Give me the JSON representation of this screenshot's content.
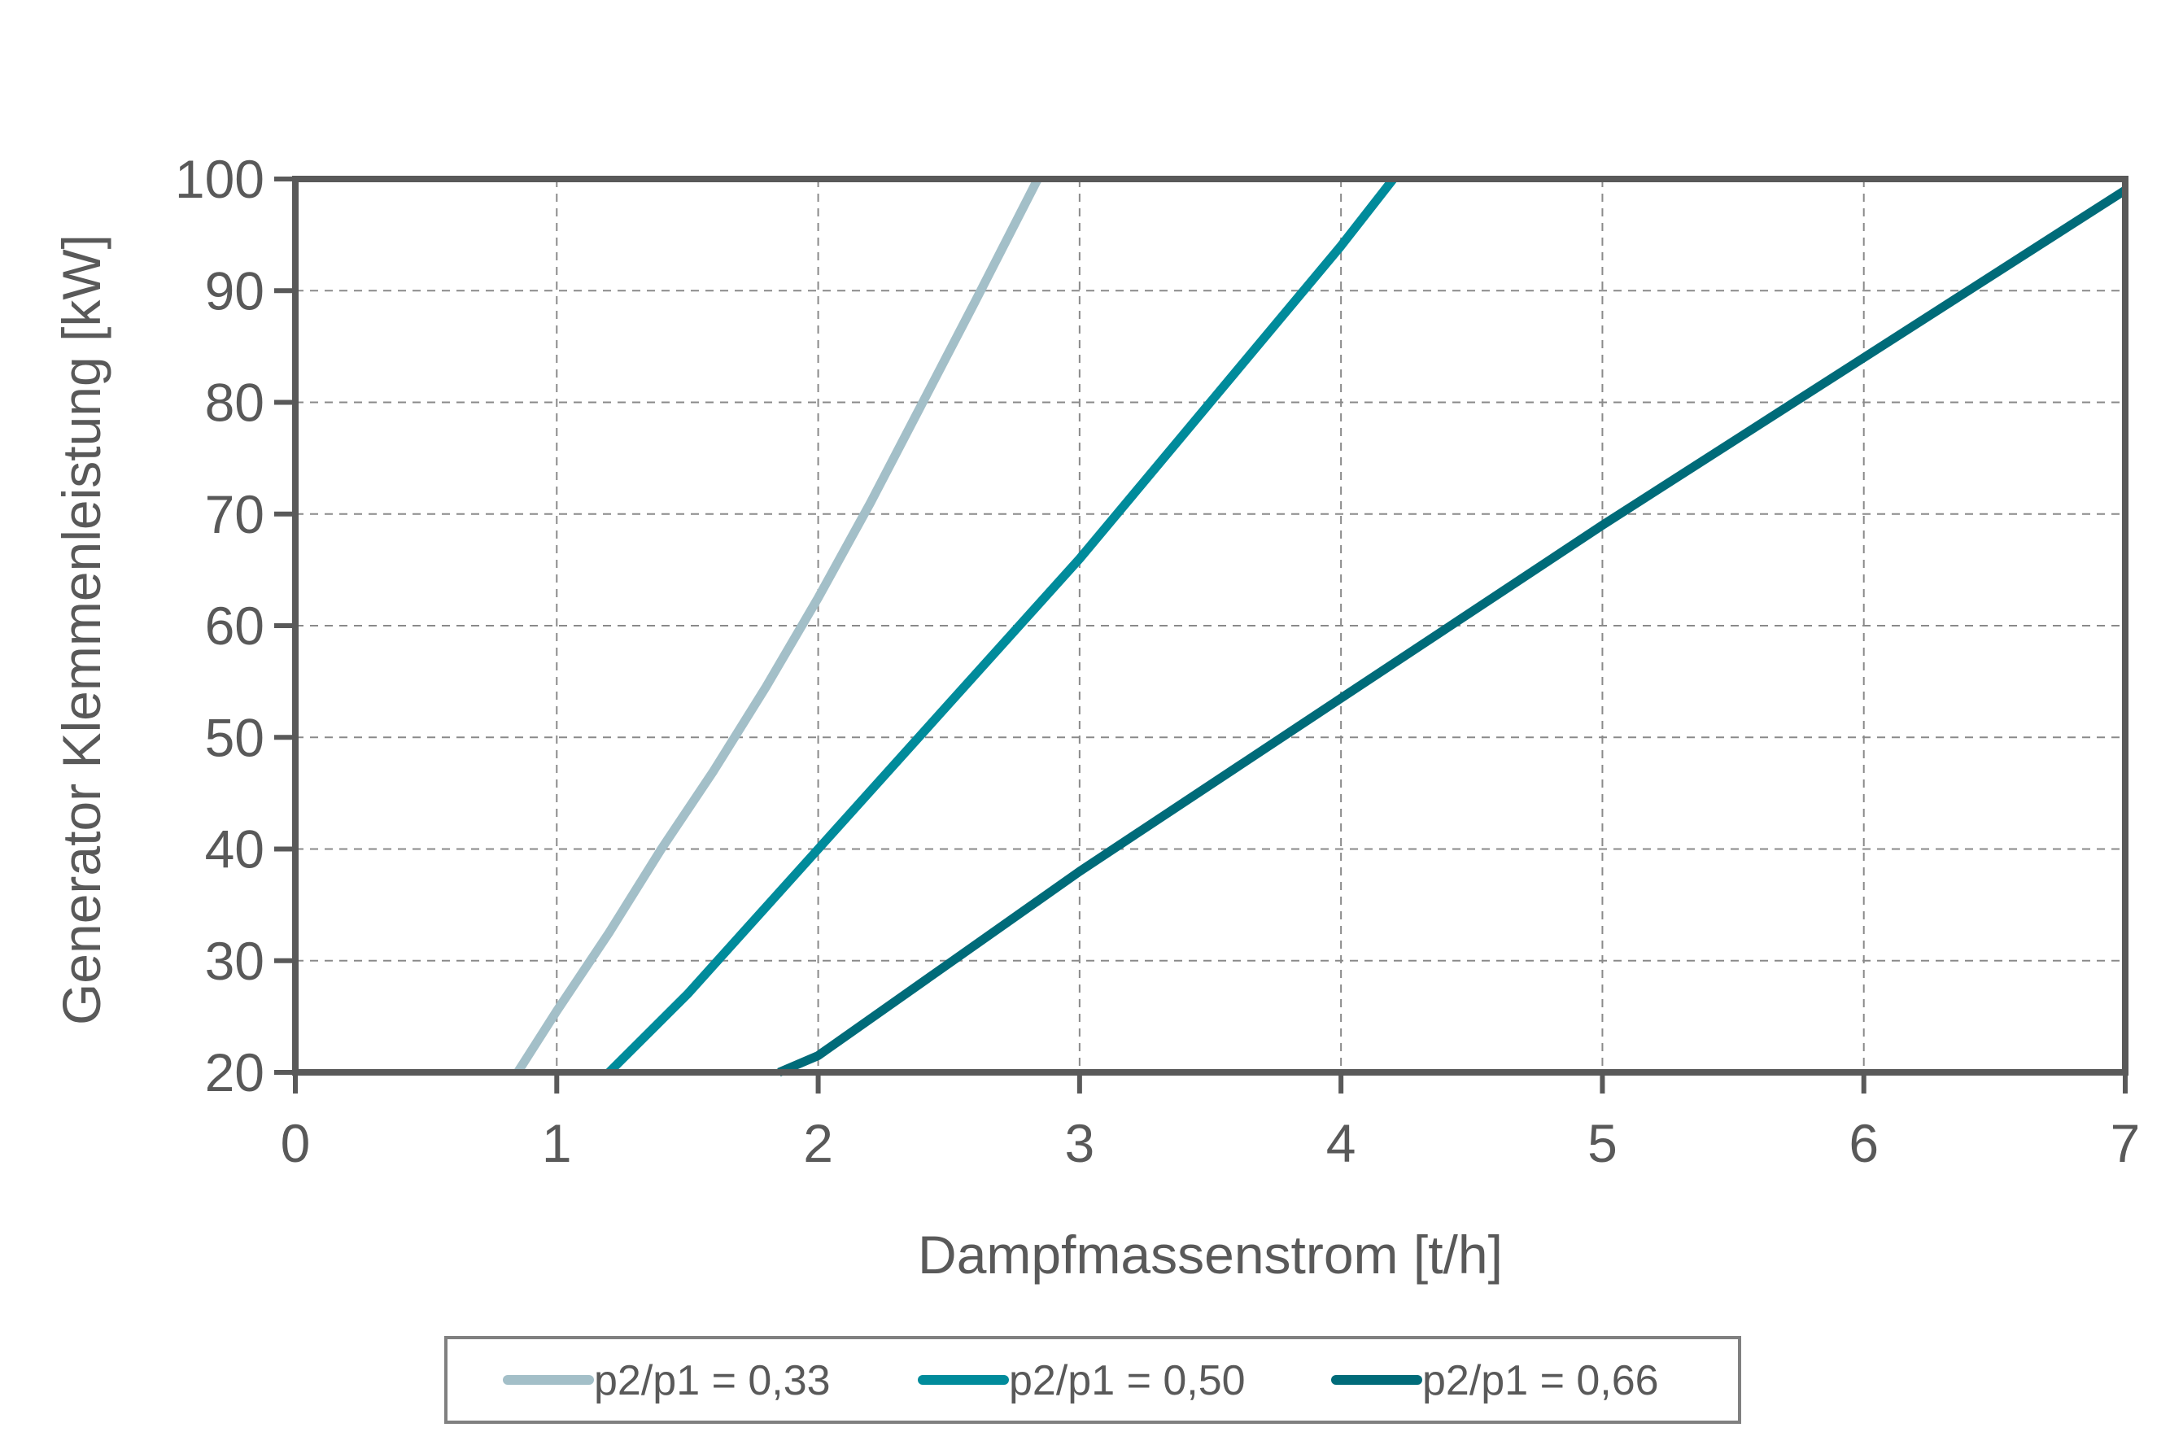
{
  "chart_data": {
    "type": "line",
    "xlabel": "Dampfmassenstrom [t/h]",
    "ylabel": "Generator Klemmenleistung [kW]",
    "xlim": [
      0,
      7
    ],
    "ylim": [
      20,
      100
    ],
    "xticks": [
      "0",
      "1",
      "2",
      "3",
      "4",
      "5",
      "6",
      "7"
    ],
    "yticks": [
      "20",
      "30",
      "40",
      "50",
      "60",
      "70",
      "80",
      "90",
      "100"
    ],
    "grid": true,
    "legend_position": "bottom",
    "series": [
      {
        "name": "p2/p1 = 0,33",
        "color": "#a3bfc8",
        "x": [
          0.85,
          1.0,
          1.2,
          1.4,
          1.6,
          1.8,
          2.0,
          2.2,
          2.4,
          2.6,
          2.84
        ],
        "y": [
          20,
          25.5,
          32.5,
          40,
          47,
          54.5,
          62.5,
          71,
          80,
          89,
          100
        ]
      },
      {
        "name": "p2/p1 = 0,50",
        "color": "#008b9b",
        "x": [
          1.2,
          1.5,
          2.0,
          2.5,
          3.0,
          3.5,
          4.0,
          4.2
        ],
        "y": [
          20,
          27,
          40,
          53,
          66,
          80,
          94,
          100
        ]
      },
      {
        "name": "p2/p1 = 0,66",
        "color": "#006b79",
        "x": [
          1.85,
          2.0,
          3.0,
          4.0,
          5.0,
          6.0,
          7.0
        ],
        "y": [
          20,
          21.5,
          38,
          53.5,
          69,
          84,
          99
        ]
      }
    ]
  }
}
